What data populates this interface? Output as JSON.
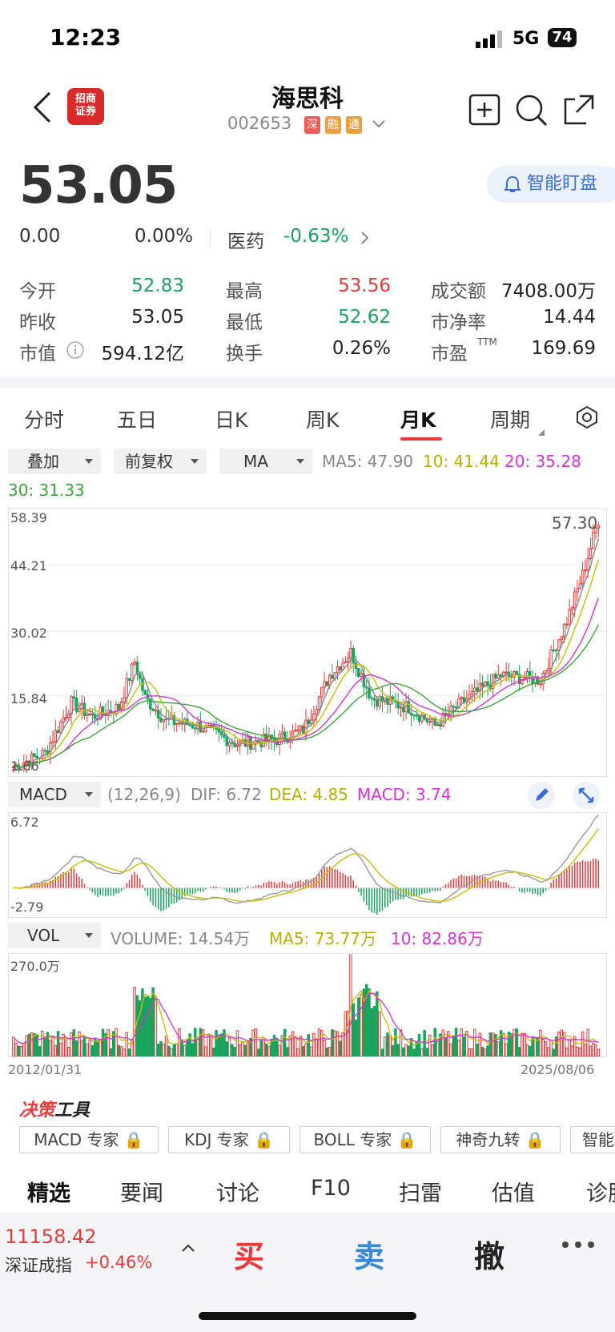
{
  "status": {
    "time": "12:23",
    "network": "5G",
    "battery": "74"
  },
  "header": {
    "title": "海思科",
    "code": "002653",
    "tags": [
      "深",
      "融",
      "通"
    ],
    "tag_colors": [
      "#f05a5a",
      "#f0a040",
      "#e6a03c"
    ]
  },
  "quote": {
    "price": "53.05",
    "change": "0.00",
    "change_pct": "0.00%",
    "sector": "医药",
    "sector_change": "-0.63%",
    "smart_watch": "智能盯盘",
    "stats": [
      {
        "label": "今开",
        "value": "52.83",
        "color": "#1aa35c"
      },
      {
        "label": "最高",
        "value": "53.56",
        "color": "#e83a3a"
      },
      {
        "label": "成交额",
        "value": "7408.00万",
        "color": "#222"
      },
      {
        "label": "昨收",
        "value": "53.05",
        "color": "#222"
      },
      {
        "label": "最低",
        "value": "52.62",
        "color": "#1aa35c"
      },
      {
        "label": "市净率",
        "value": "14.44",
        "color": "#222"
      },
      {
        "label": "市值",
        "value": "594.12亿",
        "color": "#222"
      },
      {
        "label": "换手",
        "value": "0.26%",
        "color": "#222"
      },
      {
        "label": "市盈",
        "value": "169.69",
        "color": "#222"
      }
    ],
    "pe_suffix": "TTM"
  },
  "tabs": [
    "分时",
    "五日",
    "日K",
    "周K",
    "月K",
    "周期"
  ],
  "active_tab": "月K",
  "controls": {
    "overlay": "叠加",
    "adjust": "前复权",
    "indicator": "MA"
  },
  "ma_legend": {
    "ma5": "MA5: 47.90",
    "ma10": "10: 41.44",
    "ma20": "20: 35.28",
    "ma30": "30: 31.33"
  },
  "colors": {
    "up": "#e83a3a",
    "down": "#1aa35c",
    "ma5": "#888888",
    "ma10": "#c8c000",
    "ma20": "#d633d6",
    "ma30": "#3aa83a"
  },
  "main_chart": {
    "y_ticks": [
      "58.39",
      "44.21",
      "30.02",
      "15.84",
      "1.66"
    ],
    "max_label": "57.30"
  },
  "macd": {
    "label": "MACD",
    "params": "(12,26,9)",
    "dif": "DIF: 6.72",
    "dea": "DEA: 4.85",
    "macd": "MACD: 3.74",
    "y_top": "6.72",
    "y_bottom": "-2.79"
  },
  "vol": {
    "label": "VOL",
    "volume": "VOLUME: 14.54万",
    "ma5": "MA5: 73.77万",
    "ma10": "10: 82.86万",
    "y_top": "270.0万",
    "date_start": "2012/01/31",
    "date_end": "2025/08/06"
  },
  "decision_tools": {
    "title_a": "决策",
    "title_b": "工具",
    "items": [
      "MACD 专家",
      "KDJ 专家",
      "BOLL 专家",
      "神奇九转",
      "智能"
    ]
  },
  "news_tabs": [
    "精选",
    "要闻",
    "讨论",
    "F10",
    "扫雷",
    "估值",
    "诊股"
  ],
  "bottom_bar": {
    "index_value": "11158.42",
    "index_name": "深证成指",
    "index_change": "+0.46%",
    "buy": "买",
    "sell": "卖",
    "cancel": "撤"
  }
}
